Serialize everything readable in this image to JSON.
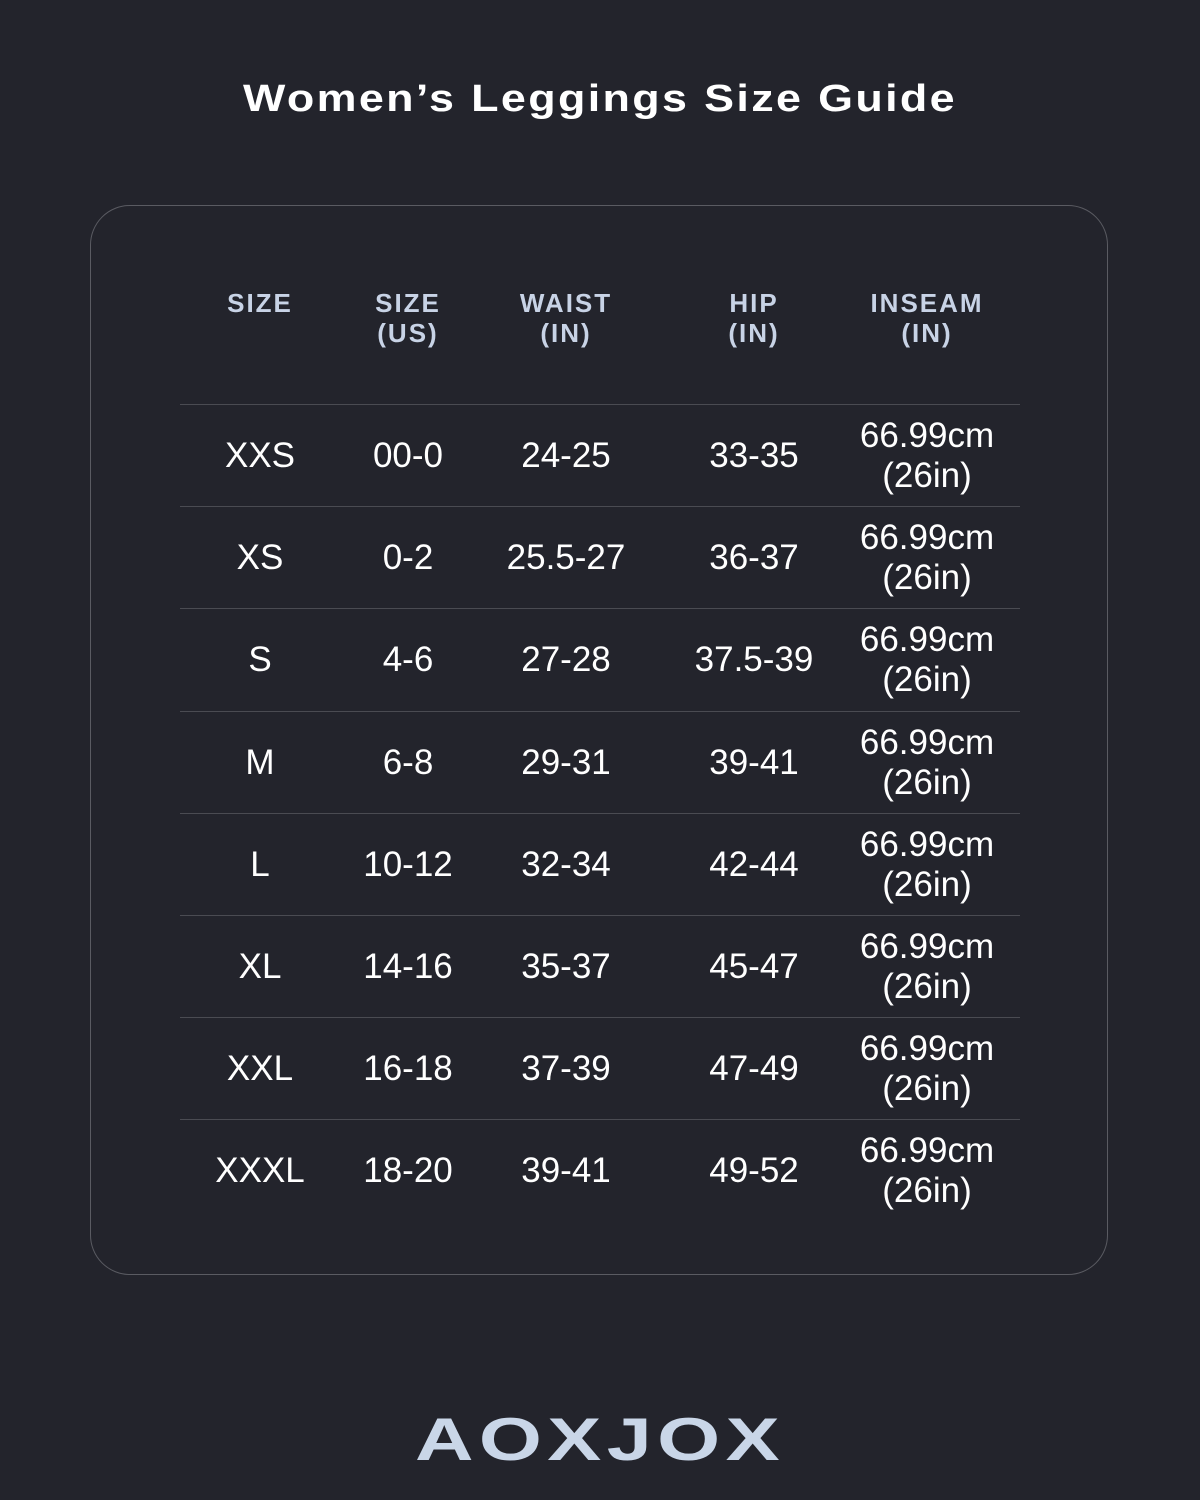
{
  "title": "Women’s Leggings Size Guide",
  "table": {
    "headers": [
      [
        "SIZE",
        ""
      ],
      [
        "SIZE",
        "(US)"
      ],
      [
        "WAIST",
        "(IN)"
      ],
      [
        "HIP",
        "(IN)"
      ],
      [
        "INSEAM",
        "(IN)"
      ]
    ],
    "rows": [
      [
        "XXS",
        "00-0",
        "24-25",
        "33-35",
        "66.99cm",
        "(26in)"
      ],
      [
        "XS",
        "0-2",
        "25.5-27",
        "36-37",
        "66.99cm",
        "(26in)"
      ],
      [
        "S",
        "4-6",
        "27-28",
        "37.5-39",
        "66.99cm",
        "(26in)"
      ],
      [
        "M",
        "6-8",
        "29-31",
        "39-41",
        "66.99cm",
        "(26in)"
      ],
      [
        "L",
        "10-12",
        "32-34",
        "42-44",
        "66.99cm",
        "(26in)"
      ],
      [
        "XL",
        "14-16",
        "35-37",
        "45-47",
        "66.99cm",
        "(26in)"
      ],
      [
        "XXL",
        "16-18",
        "37-39",
        "47-49",
        "66.99cm",
        "(26in)"
      ],
      [
        "XXXL",
        "18-20",
        "39-41",
        "49-52",
        "66.99cm",
        "(26in)"
      ]
    ]
  },
  "brand": "AOXJOX",
  "colors": {
    "background": "#23242c",
    "header_text": "#c8d3e6",
    "logo": "#c9d6e8"
  }
}
